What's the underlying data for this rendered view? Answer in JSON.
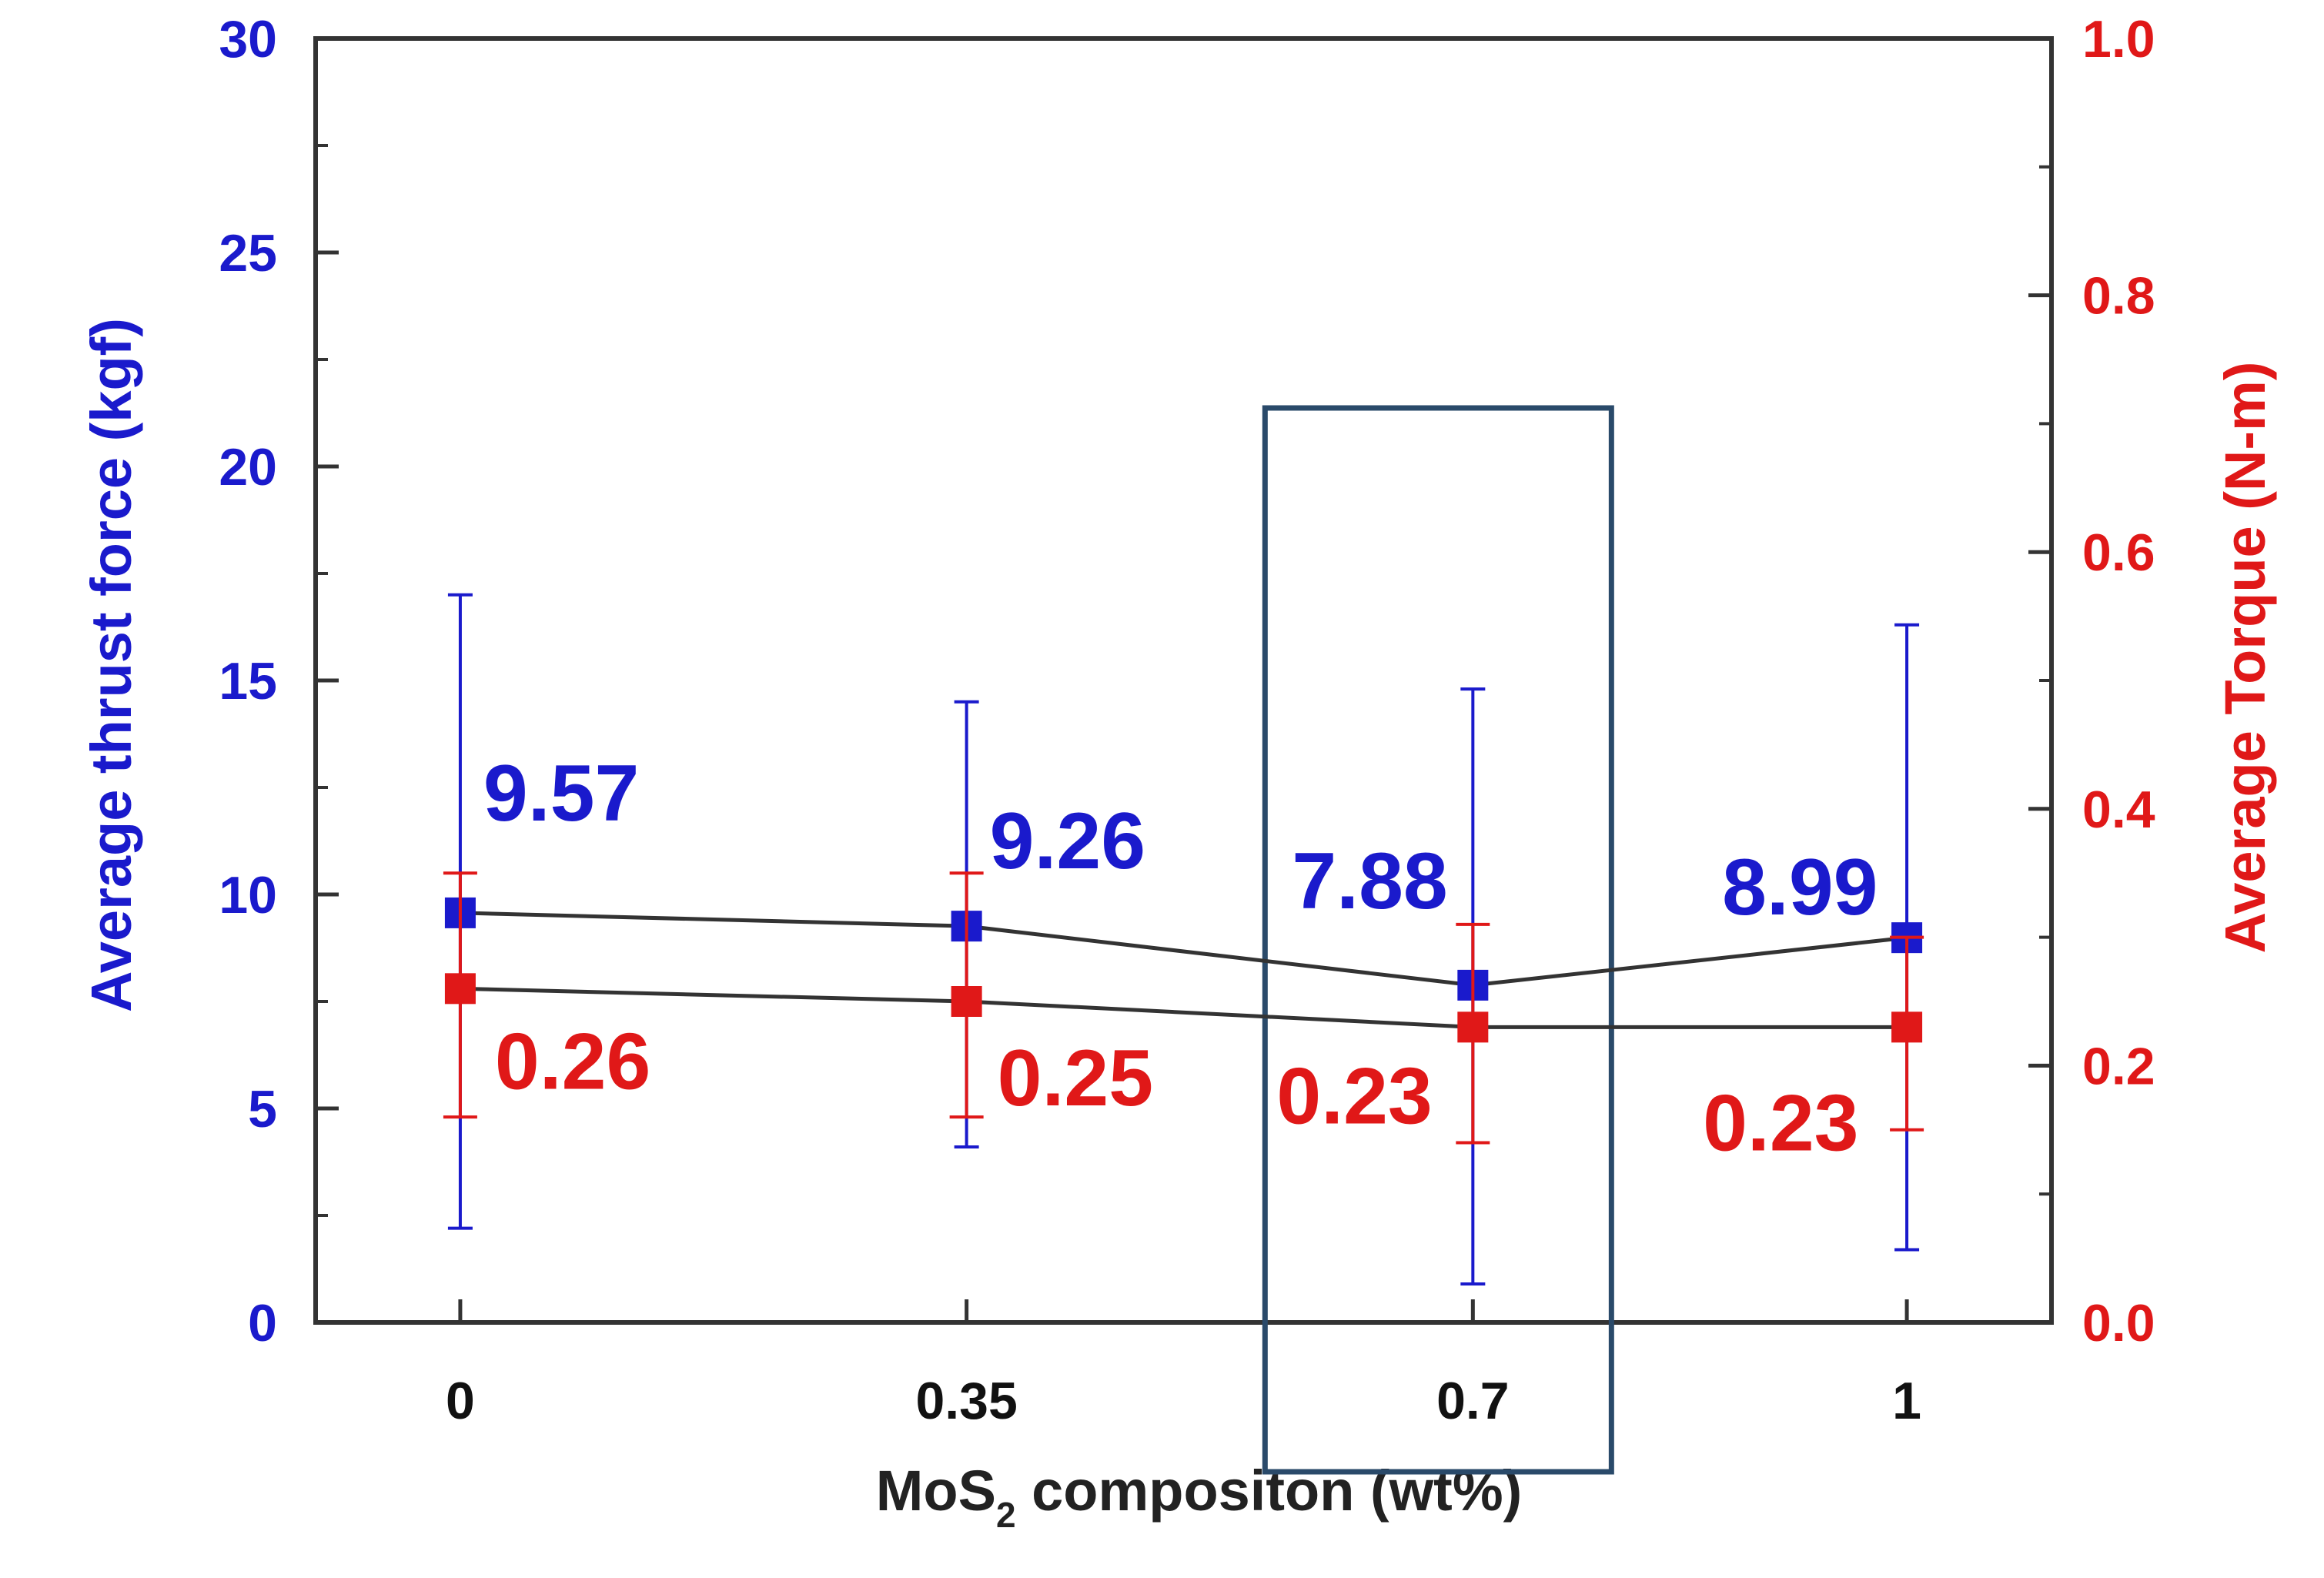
{
  "chart_data": {
    "type": "line",
    "x_ticks": [
      "0",
      "0.35",
      "0.7",
      "1"
    ],
    "x": [
      0,
      0.35,
      0.7,
      1
    ],
    "xlim": [
      -0.1,
      1.1
    ],
    "xlabel": {
      "prefix": "MoS",
      "subscript": "2",
      "suffix": " compositon (wt%)"
    },
    "y_left": {
      "label": "Average thrust force (kgf)",
      "ylim": [
        0,
        30
      ],
      "ticks": [
        "0",
        "5",
        "10",
        "15",
        "20",
        "25",
        "30"
      ],
      "tick_values": [
        0,
        5,
        10,
        15,
        20,
        25,
        30
      ]
    },
    "y_right": {
      "label": "Average Torque (N-m)",
      "ylim": [
        0,
        1
      ],
      "ticks": [
        "0.0",
        "0.2",
        "0.4",
        "0.6",
        "0.8",
        "1.0"
      ],
      "tick_values": [
        0,
        0.2,
        0.4,
        0.6,
        0.8,
        1.0
      ]
    },
    "series": [
      {
        "axis": "left",
        "color": "#1a1acc",
        "values": [
          9.57,
          9.26,
          7.88,
          8.99
        ],
        "labels": [
          "9.57",
          "9.26",
          "7.88",
          "8.99"
        ],
        "err_low": [
          2.2,
          4.1,
          0.9,
          1.7
        ],
        "err_high": [
          17.0,
          14.5,
          14.8,
          16.3
        ]
      },
      {
        "axis": "right",
        "color": "#e01818",
        "values": [
          0.26,
          0.25,
          0.23,
          0.23
        ],
        "labels": [
          "0.26",
          "0.25",
          "0.23",
          "0.23"
        ],
        "err_low": [
          0.16,
          0.16,
          0.14,
          0.15
        ],
        "err_high": [
          0.35,
          0.35,
          0.31,
          0.3
        ]
      }
    ],
    "highlight_x": 0.7,
    "grid": false,
    "colors": {
      "left_axis": "#1a1acc",
      "right_axis": "#e01818",
      "connector": "#333333",
      "highlight": "#2a4a6a"
    }
  }
}
